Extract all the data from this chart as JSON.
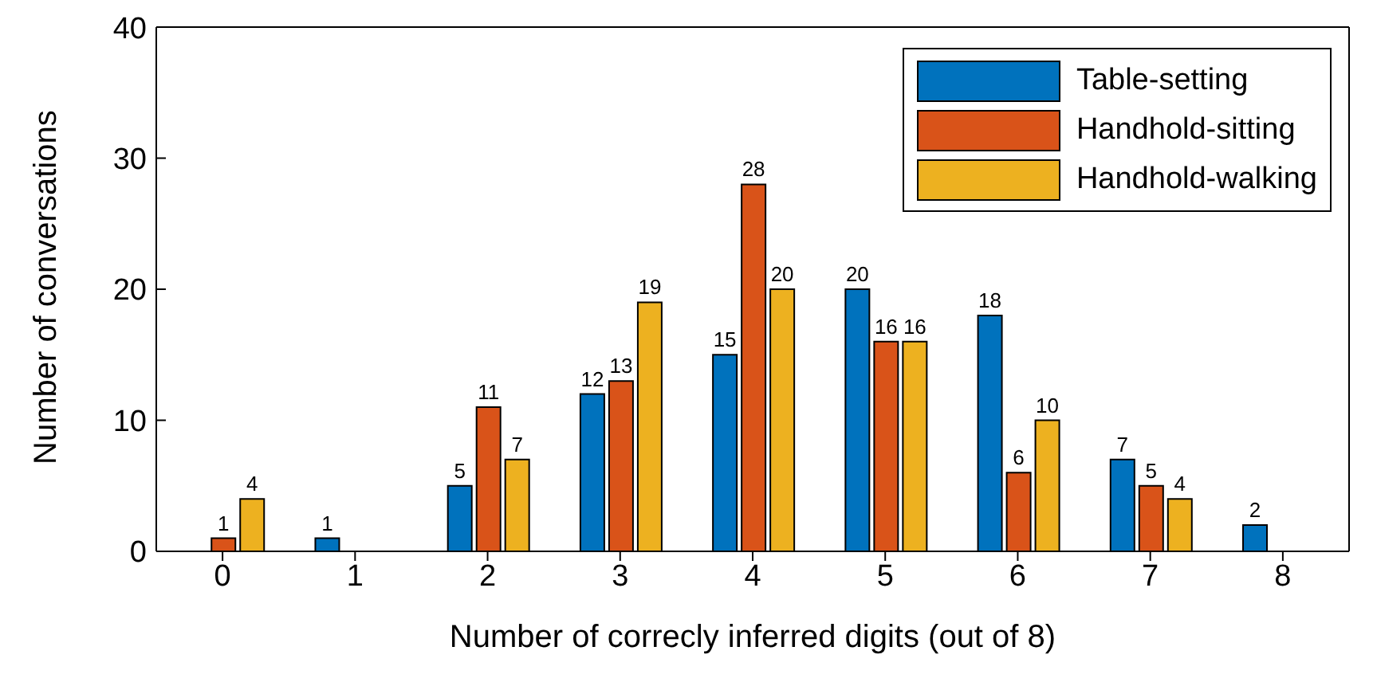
{
  "chart_data": {
    "type": "bar",
    "xlabel": "Number of correcly inferred digits (out of 8)",
    "ylabel": "Number of conversations",
    "categories": [
      "0",
      "1",
      "2",
      "3",
      "4",
      "5",
      "6",
      "7",
      "8"
    ],
    "series": [
      {
        "name": "Table-setting",
        "color": "#0072bd",
        "values": [
          null,
          1,
          5,
          12,
          15,
          20,
          18,
          7,
          2
        ]
      },
      {
        "name": "Handhold-sitting",
        "color": "#d95319",
        "values": [
          1,
          null,
          11,
          13,
          28,
          16,
          6,
          5,
          null
        ]
      },
      {
        "name": "Handhold-walking",
        "color": "#edb120",
        "values": [
          4,
          null,
          7,
          19,
          20,
          16,
          10,
          4,
          null
        ]
      }
    ],
    "ylim": [
      0,
      40
    ],
    "yticks": [
      0,
      10,
      20,
      30,
      40
    ],
    "legend": "top right",
    "data_labels": true
  }
}
